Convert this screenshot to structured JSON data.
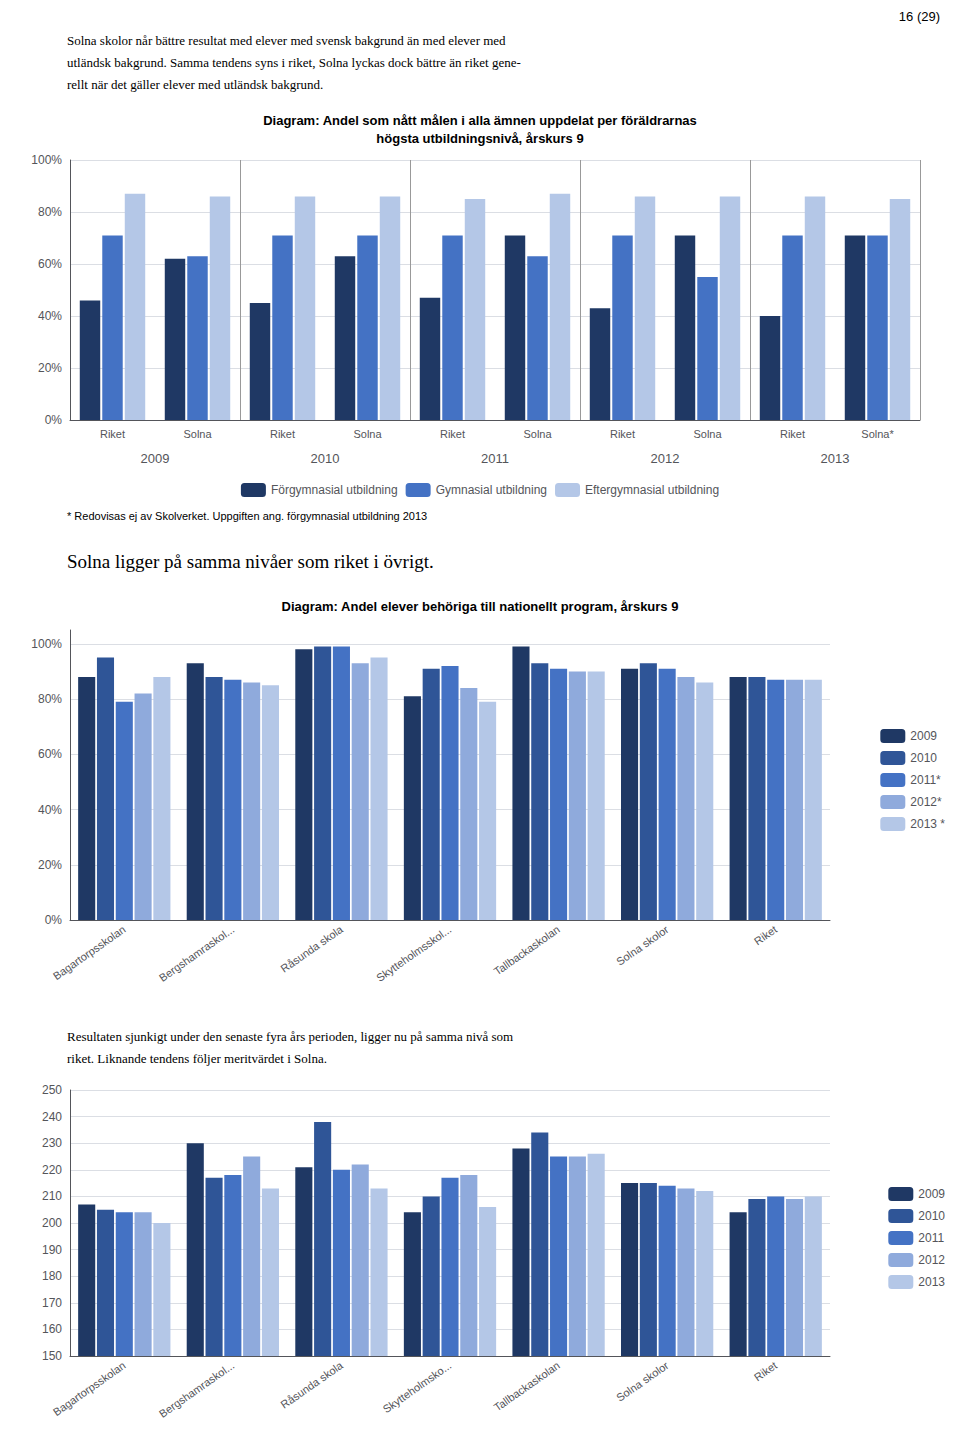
{
  "chart_data": [
    {
      "type": "bar",
      "title": "Diagram: Andel som nått målen i alla ämnen uppdelat per föräldrarnas\nhögsta utbildningsnivå, årskurs 9",
      "annotations": [
        "16 (29)",
        "Solna skolor når bättre resultat med elever med svensk bakgrund än med elever med",
        "utländsk bakgrund. Samma tendens syns i riket, Solna lyckas dock bättre än riket gene-",
        "rellt när det gäller elever med utländsk bakgrund.",
        "* Redovisas ej av Skolverket. Uppgiften ang. förgymnasial utbildning 2013"
      ],
      "categories": [
        "Riket",
        "Solna",
        "Riket",
        "Solna",
        "Riket",
        "Solna",
        "Riket",
        "Solna",
        "Riket",
        "Solna*"
      ],
      "category_groups": [
        "2009",
        "2010",
        "2011",
        "2012",
        "2013"
      ],
      "series": [
        {
          "name": "Förgymnasial utbildning",
          "color": "#1f3864",
          "values": [
            0.46,
            0.62,
            0.45,
            0.63,
            0.47,
            0.71,
            0.43,
            0.71,
            0.4,
            0.71
          ]
        },
        {
          "name": "Gymnasial utbildning",
          "color": "#4472c4",
          "values": [
            0.71,
            0.63,
            0.71,
            0.71,
            0.71,
            0.63,
            0.71,
            0.55,
            0.71,
            0.71
          ]
        },
        {
          "name": "Eftergymnasial utbildning",
          "color": "#b4c7e7",
          "values": [
            0.87,
            0.86,
            0.86,
            0.86,
            0.85,
            0.87,
            0.86,
            0.86,
            0.86,
            0.85
          ]
        }
      ],
      "ylim": [
        0,
        1.0
      ],
      "yticks": [
        {
          "value": 0,
          "label": "0%"
        },
        {
          "value": 0.2,
          "label": "20%"
        },
        {
          "value": 0.4,
          "label": "40%"
        },
        {
          "value": 0.6,
          "label": "60%"
        },
        {
          "value": 0.8,
          "label": "80%"
        },
        {
          "value": 1.0,
          "label": "100%"
        }
      ],
      "grid": true,
      "legend": "bottom"
    },
    {
      "type": "bar",
      "title": "Diagram: Andel elever behöriga till nationellt program, årskurs 9",
      "annotations": [
        "Solna ligger på samma nivåer som riket i övrigt."
      ],
      "categories": [
        "Bagartorpsskolan",
        "Bergshamraskol...",
        "Råsunda skola",
        "Skytteholmsskol...",
        "Tallbackaskolan",
        "Solna skolor",
        "Riket"
      ],
      "series": [
        {
          "name": "2009",
          "color": "#1f3864",
          "values": [
            0.88,
            0.93,
            0.98,
            0.81,
            0.99,
            0.91,
            0.88
          ]
        },
        {
          "name": "2010",
          "color": "#2f5597",
          "values": [
            0.95,
            0.88,
            0.99,
            0.91,
            0.93,
            0.93,
            0.88
          ]
        },
        {
          "name": "2011*",
          "color": "#4472c4",
          "values": [
            0.79,
            0.87,
            0.99,
            0.92,
            0.91,
            0.91,
            0.87
          ]
        },
        {
          "name": "2012*",
          "color": "#8faadc",
          "values": [
            0.82,
            0.86,
            0.93,
            0.84,
            0.9,
            0.88,
            0.87
          ]
        },
        {
          "name": "2013 *",
          "color": "#b4c7e7",
          "values": [
            0.88,
            0.85,
            0.95,
            0.79,
            0.9,
            0.86,
            0.87
          ]
        }
      ],
      "ylim": [
        0,
        1.05
      ],
      "yticks": [
        {
          "value": 0,
          "label": "0%"
        },
        {
          "value": 0.2,
          "label": "20%"
        },
        {
          "value": 0.4,
          "label": "40%"
        },
        {
          "value": 0.6,
          "label": "60%"
        },
        {
          "value": 0.8,
          "label": "80%"
        },
        {
          "value": 1.0,
          "label": "100%"
        }
      ],
      "grid": true,
      "legend": "right"
    },
    {
      "type": "bar",
      "annotations": [
        "Resultaten sjunkigt under den senaste fyra års perioden, ligger nu på samma nivå som",
        "riket. Liknande tendens följer meritvärdet i Solna."
      ],
      "categories": [
        "Bagartorpsskolan",
        "Bergshamraskol...",
        "Råsunda skola",
        "Skytteholmsko...",
        "Tallbackaskolan",
        "Solna skolor",
        "Riket"
      ],
      "series": [
        {
          "name": "2009",
          "color": "#1f3864",
          "values": [
            207,
            230,
            221,
            204,
            228,
            215,
            204
          ]
        },
        {
          "name": "2010",
          "color": "#2f5597",
          "values": [
            205,
            217,
            238,
            210,
            234,
            215,
            209
          ]
        },
        {
          "name": "2011",
          "color": "#4472c4",
          "values": [
            204,
            218,
            220,
            217,
            225,
            214,
            210
          ]
        },
        {
          "name": "2012",
          "color": "#8faadc",
          "values": [
            204,
            225,
            222,
            218,
            225,
            213,
            209
          ]
        },
        {
          "name": "2013",
          "color": "#b4c7e7",
          "values": [
            200,
            213,
            213,
            206,
            226,
            212,
            210
          ]
        }
      ],
      "ylim": [
        150,
        250
      ],
      "yticks": [
        150,
        160,
        170,
        180,
        190,
        200,
        210,
        220,
        230,
        240,
        250
      ],
      "grid": true,
      "legend": "right"
    }
  ]
}
